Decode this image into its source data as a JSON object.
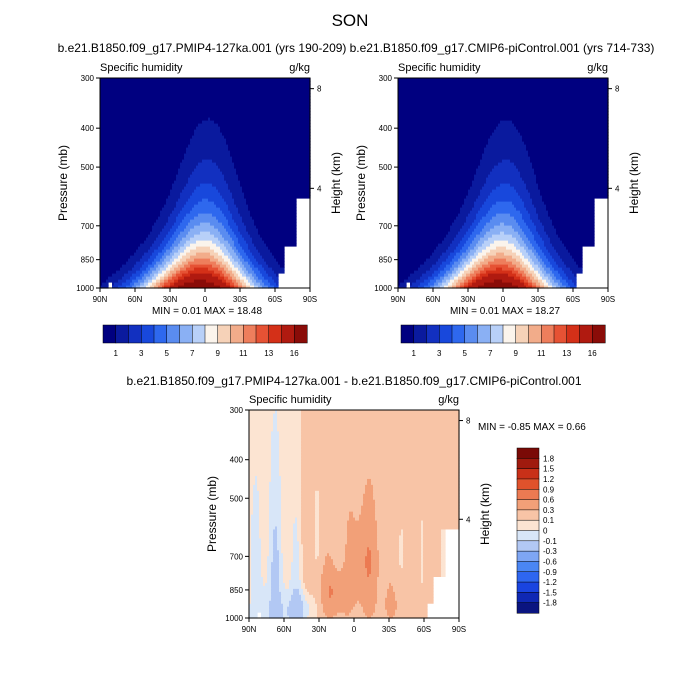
{
  "figure": {
    "title": "SON"
  },
  "colors": {
    "moisture_scale": [
      "#000080",
      "#0a1a9e",
      "#1230c0",
      "#1848dc",
      "#2e68ee",
      "#5a8cf0",
      "#8ab0f4",
      "#b8d0f8",
      "#fbf4ec",
      "#f6d2b8",
      "#f2ac8a",
      "#ee7e5c",
      "#e65234",
      "#d43018",
      "#b01a10",
      "#8a0c08"
    ],
    "diff_scale": [
      "#0a1480",
      "#0f28b4",
      "#1a44e0",
      "#2e66f0",
      "#4a86f4",
      "#7ea6f4",
      "#b2c8f4",
      "#d8e6f8",
      "#fce4d2",
      "#f8c4a6",
      "#f2a078",
      "#ec7a52",
      "#e0522c",
      "#c83018",
      "#a01a0e",
      "#7a0a06"
    ]
  },
  "chart_data": [
    {
      "type": "contour",
      "panel": "top-left",
      "title": "b.e21.B1850.f09_g17.PMIP4-127ka.001 (yrs 190-209)",
      "left_label": "Specific humidity",
      "right_label": "g/kg",
      "ylabel": "Pressure (mb)",
      "y2label": "Height (km)",
      "x_ticks": [
        "90N",
        "60N",
        "30N",
        "0",
        "30S",
        "60S",
        "90S"
      ],
      "x_values": [
        90,
        60,
        30,
        0,
        -30,
        -60,
        -90
      ],
      "y_ticks": [
        "300",
        "400",
        "500",
        "700",
        "850",
        "1000"
      ],
      "y_values": [
        300,
        400,
        500,
        700,
        850,
        1000
      ],
      "y2_ticks": [
        "8",
        "4"
      ],
      "y2_values": [
        8,
        4
      ],
      "ylim": [
        300,
        1000
      ],
      "xlim": [
        90,
        -90
      ],
      "log_pressure": true,
      "stats": "MIN =  0.01  MAX =  18.48",
      "min": 0.01,
      "max": 18.48,
      "peak_lat": 5,
      "colorbar_labels": [
        "1",
        "3",
        "5",
        "7",
        "9",
        "11",
        "13",
        "16"
      ],
      "levels": [
        1,
        2,
        3,
        4,
        5,
        6,
        7,
        8,
        9,
        10,
        11,
        12,
        13,
        14,
        16
      ]
    },
    {
      "type": "contour",
      "panel": "top-right",
      "title": "b.e21.B1850.f09_g17.CMIP6-piControl.001 (yrs 714-733)",
      "left_label": "Specific humidity",
      "right_label": "g/kg",
      "ylabel": "Pressure (mb)",
      "y2label": "Height (km)",
      "x_ticks": [
        "90N",
        "60N",
        "30N",
        "0",
        "30S",
        "60S",
        "90S"
      ],
      "x_values": [
        90,
        60,
        30,
        0,
        -30,
        -60,
        -90
      ],
      "y_ticks": [
        "300",
        "400",
        "500",
        "700",
        "850",
        "1000"
      ],
      "y_values": [
        300,
        400,
        500,
        700,
        850,
        1000
      ],
      "y2_ticks": [
        "8",
        "4"
      ],
      "y2_values": [
        8,
        4
      ],
      "ylim": [
        300,
        1000
      ],
      "xlim": [
        90,
        -90
      ],
      "log_pressure": true,
      "stats": "MIN =  0.01  MAX =  18.27",
      "min": 0.01,
      "max": 18.27,
      "peak_lat": 5,
      "colorbar_labels": [
        "1",
        "3",
        "5",
        "7",
        "9",
        "11",
        "13",
        "16"
      ],
      "levels": [
        1,
        2,
        3,
        4,
        5,
        6,
        7,
        8,
        9,
        10,
        11,
        12,
        13,
        14,
        16
      ]
    },
    {
      "type": "contour",
      "panel": "bottom",
      "title": "b.e21.B1850.f09_g17.PMIP4-127ka.001 - b.e21.B1850.f09_g17.CMIP6-piControl.001",
      "left_label": "Specific humidity",
      "right_label": "g/kg",
      "ylabel": "Pressure (mb)",
      "y2label": "Height (km)",
      "x_ticks": [
        "90N",
        "60N",
        "30N",
        "0",
        "30S",
        "60S",
        "90S"
      ],
      "x_values": [
        90,
        60,
        30,
        0,
        -30,
        -60,
        -90
      ],
      "y_ticks": [
        "300",
        "400",
        "500",
        "700",
        "850",
        "1000"
      ],
      "y_values": [
        300,
        400,
        500,
        700,
        850,
        1000
      ],
      "y2_ticks": [
        "8",
        "4"
      ],
      "y2_values": [
        8,
        4
      ],
      "ylim": [
        300,
        1000
      ],
      "xlim": [
        90,
        -90
      ],
      "log_pressure": true,
      "stats": "MIN = -0.85  MAX =   0.66",
      "min": -0.85,
      "max": 0.66,
      "colorbar_labels": [
        "1.8",
        "1.5",
        "1.2",
        "0.9",
        "0.6",
        "0.3",
        "0.1",
        "0",
        "-0.1",
        "-0.3",
        "-0.6",
        "-0.9",
        "-1.2",
        "-1.5",
        "-1.8"
      ],
      "levels": [
        -1.8,
        -1.5,
        -1.2,
        -0.9,
        -0.6,
        -0.3,
        -0.1,
        0,
        0.1,
        0.3,
        0.6,
        0.9,
        1.2,
        1.5,
        1.8
      ]
    }
  ]
}
